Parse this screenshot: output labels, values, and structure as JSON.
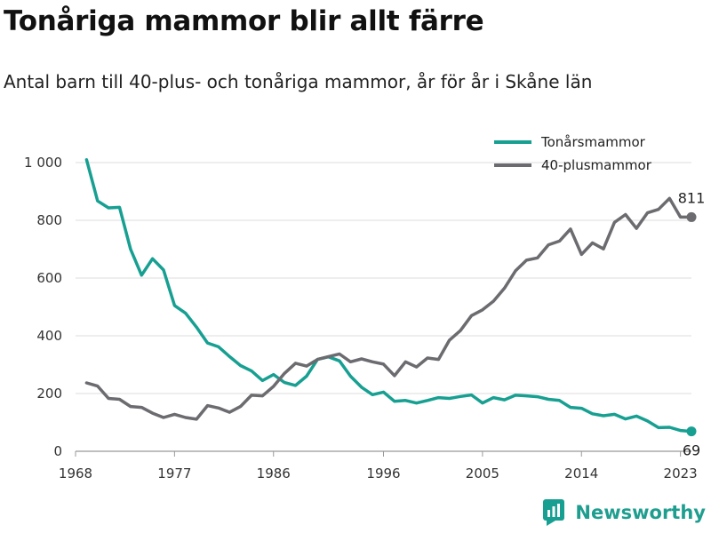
{
  "page": {
    "title": "Tonåriga mammor blir allt färre",
    "subtitle": "Antal barn till 40-plus- och tonåriga mammor, år för år i Skåne län",
    "brand": "Newsworthy"
  },
  "chart_data": {
    "type": "line",
    "title": "Tonåriga mammor blir allt färre",
    "subtitle": "Antal barn till 40-plus- och tonåriga mammor, år för år i Skåne län",
    "xlabel": "",
    "ylabel": "",
    "xlim": [
      1968,
      2024
    ],
    "ylim": [
      0,
      1000
    ],
    "x_ticks": [
      1968,
      1977,
      1986,
      1996,
      2005,
      2014,
      2023
    ],
    "x_tick_labels": [
      "1968",
      "1977",
      "1986",
      "1996",
      "2005",
      "2014",
      "2023"
    ],
    "y_ticks": [
      0,
      200,
      400,
      600,
      800,
      1000
    ],
    "y_tick_labels": [
      "0",
      "200",
      "400",
      "600",
      "800",
      "1 000"
    ],
    "grid": "horizontal",
    "legend_position": "top-right",
    "x": [
      1969,
      1970,
      1971,
      1972,
      1973,
      1974,
      1975,
      1976,
      1977,
      1978,
      1979,
      1980,
      1981,
      1982,
      1983,
      1984,
      1985,
      1986,
      1987,
      1988,
      1989,
      1990,
      1991,
      1992,
      1993,
      1994,
      1995,
      1996,
      1997,
      1998,
      1999,
      2000,
      2001,
      2002,
      2003,
      2004,
      2005,
      2006,
      2007,
      2008,
      2009,
      2010,
      2011,
      2012,
      2013,
      2014,
      2015,
      2016,
      2017,
      2018,
      2019,
      2020,
      2021,
      2022,
      2023,
      2024
    ],
    "series": [
      {
        "name": "Tonårsmammor",
        "color": "#17a092",
        "end_label": "69",
        "values": [
          1010,
          867,
          843,
          845,
          700,
          610,
          667,
          628,
          505,
          478,
          430,
          375,
          362,
          328,
          297,
          278,
          245,
          266,
          238,
          228,
          260,
          318,
          327,
          313,
          260,
          222,
          196,
          205,
          173,
          176,
          167,
          176,
          186,
          183,
          190,
          195,
          167,
          186,
          178,
          194,
          192,
          189,
          180,
          176,
          152,
          149,
          130,
          123,
          128,
          112,
          122,
          105,
          82,
          83,
          72,
          69
        ]
      },
      {
        "name": "40-plusmammor",
        "color": "#6b6b70",
        "end_label": "811",
        "values": [
          237,
          226,
          183,
          180,
          155,
          152,
          132,
          117,
          128,
          117,
          111,
          158,
          150,
          135,
          155,
          194,
          192,
          225,
          270,
          305,
          295,
          318,
          328,
          337,
          310,
          320,
          310,
          302,
          262,
          310,
          292,
          323,
          318,
          385,
          418,
          470,
          490,
          520,
          565,
          625,
          662,
          670,
          715,
          728,
          770,
          682,
          722,
          701,
          793,
          820,
          772,
          826,
          838,
          876,
          811,
          811
        ]
      }
    ]
  }
}
